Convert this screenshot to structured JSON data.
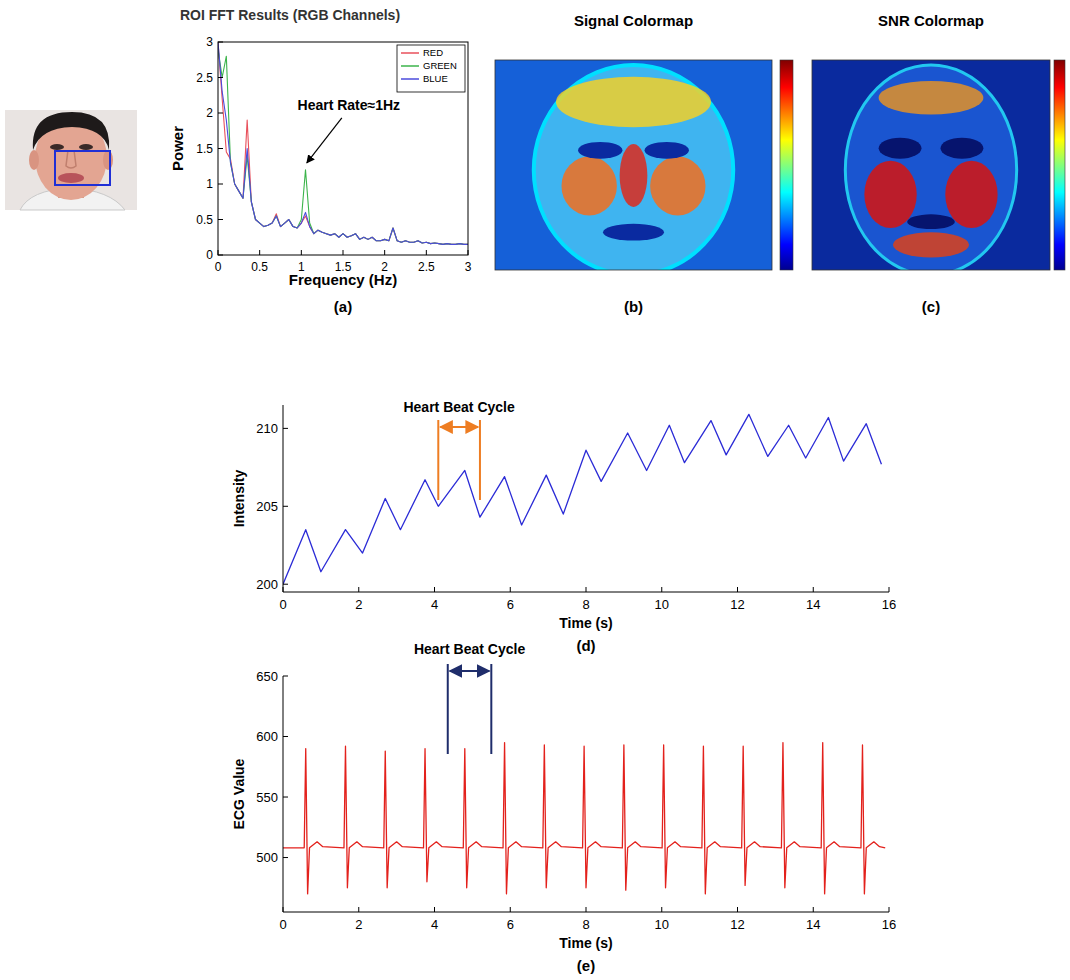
{
  "chart_data": [
    {
      "type": "line",
      "title": "ROI FFT Results (RGB Channels)",
      "label": "(a)",
      "x_label": "Frequency (Hz)",
      "y_label": "Power",
      "x": [
        0,
        0.05,
        0.1,
        0.15,
        0.2,
        0.25,
        0.3,
        0.35,
        0.4,
        0.45,
        0.5,
        0.55,
        0.6,
        0.65,
        0.7,
        0.75,
        0.8,
        0.85,
        0.9,
        0.95,
        1.0,
        1.05,
        1.1,
        1.15,
        1.2,
        1.25,
        1.3,
        1.35,
        1.4,
        1.45,
        1.5,
        1.55,
        1.6,
        1.65,
        1.7,
        1.75,
        1.8,
        1.85,
        1.9,
        1.95,
        2.0,
        2.05,
        2.1,
        2.15,
        2.2,
        2.25,
        2.3,
        2.35,
        2.4,
        2.45,
        2.5,
        2.55,
        2.6,
        2.65,
        2.7,
        2.75,
        2.8,
        2.85,
        2.9,
        2.95,
        3.0
      ],
      "series": [
        {
          "name": "RED",
          "color": "#e8505b",
          "values": [
            3.0,
            2.2,
            1.45,
            1.35,
            1.0,
            0.9,
            0.8,
            1.9,
            0.75,
            0.5,
            0.45,
            0.4,
            0.42,
            0.45,
            0.58,
            0.4,
            0.45,
            0.5,
            0.4,
            0.38,
            0.45,
            0.55,
            0.4,
            0.3,
            0.35,
            0.32,
            0.3,
            0.28,
            0.3,
            0.25,
            0.3,
            0.25,
            0.27,
            0.3,
            0.22,
            0.25,
            0.22,
            0.25,
            0.2,
            0.2,
            0.22,
            0.2,
            0.38,
            0.2,
            0.18,
            0.2,
            0.18,
            0.18,
            0.2,
            0.17,
            0.18,
            0.16,
            0.17,
            0.16,
            0.15,
            0.16,
            0.15,
            0.15,
            0.16,
            0.15,
            0.15
          ]
        },
        {
          "name": "GREEN",
          "color": "#3cb44b",
          "values": [
            2.9,
            2.5,
            2.8,
            1.3,
            1.0,
            0.9,
            0.8,
            1.4,
            0.75,
            0.5,
            0.45,
            0.4,
            0.42,
            0.45,
            0.55,
            0.4,
            0.45,
            0.5,
            0.4,
            0.38,
            0.5,
            1.2,
            0.45,
            0.3,
            0.35,
            0.32,
            0.3,
            0.28,
            0.3,
            0.25,
            0.3,
            0.25,
            0.27,
            0.3,
            0.22,
            0.25,
            0.22,
            0.25,
            0.2,
            0.2,
            0.22,
            0.2,
            0.38,
            0.2,
            0.18,
            0.2,
            0.18,
            0.18,
            0.2,
            0.17,
            0.18,
            0.16,
            0.17,
            0.16,
            0.15,
            0.16,
            0.15,
            0.15,
            0.16,
            0.15,
            0.15
          ]
        },
        {
          "name": "BLUE",
          "color": "#4b4bdc",
          "values": [
            3.0,
            2.3,
            1.9,
            1.3,
            1.0,
            0.9,
            0.8,
            1.5,
            0.75,
            0.5,
            0.45,
            0.4,
            0.42,
            0.45,
            0.55,
            0.4,
            0.45,
            0.5,
            0.4,
            0.38,
            0.45,
            0.6,
            0.4,
            0.3,
            0.35,
            0.32,
            0.3,
            0.28,
            0.3,
            0.25,
            0.3,
            0.25,
            0.27,
            0.3,
            0.22,
            0.25,
            0.22,
            0.25,
            0.2,
            0.2,
            0.22,
            0.2,
            0.38,
            0.2,
            0.18,
            0.2,
            0.18,
            0.18,
            0.2,
            0.17,
            0.18,
            0.16,
            0.17,
            0.16,
            0.15,
            0.16,
            0.15,
            0.15,
            0.16,
            0.15,
            0.15
          ]
        }
      ],
      "xlim": [
        0,
        3
      ],
      "ylim": [
        0,
        3
      ],
      "xticks": [
        0,
        0.5,
        1,
        1.5,
        2,
        2.5,
        3
      ],
      "yticks": [
        0,
        0.5,
        1,
        1.5,
        2,
        2.5,
        3
      ],
      "grid": false,
      "legend": "upper right",
      "annotations": [
        {
          "text": "Heart Rate≈1Hz",
          "x": 1.03,
          "y": 1.2,
          "color": "#000000"
        }
      ]
    },
    {
      "type": "heatmap_image",
      "title": "Signal Colormap",
      "label": "(b)"
    },
    {
      "type": "heatmap_image",
      "title": "SNR Colormap",
      "label": "(c)"
    },
    {
      "type": "line",
      "label": "(d)",
      "x_label": "Time (s)",
      "y_label": "Intensity",
      "x": [
        0,
        0.6,
        1.0,
        1.65,
        2.1,
        2.7,
        3.1,
        3.75,
        4.1,
        4.8,
        5.2,
        5.85,
        6.3,
        6.95,
        7.4,
        8.0,
        8.4,
        9.1,
        9.6,
        10.2,
        10.6,
        11.3,
        11.7,
        12.3,
        12.8,
        13.35,
        13.8,
        14.4,
        14.8,
        15.4,
        15.8
      ],
      "series": [
        {
          "color": "#2b2bd6",
          "values": [
            200,
            203.5,
            200.8,
            203.5,
            202,
            205.5,
            203.5,
            206.7,
            205,
            207.3,
            204.3,
            206.9,
            203.8,
            207,
            204.5,
            208.6,
            206.6,
            209.7,
            207.3,
            210.2,
            207.8,
            210.5,
            208.3,
            210.9,
            208.2,
            210.2,
            208.1,
            210.7,
            207.9,
            210.3,
            207.7
          ]
        }
      ],
      "xlim": [
        0,
        16
      ],
      "ylim": [
        199.5,
        211.5
      ],
      "xticks": [
        0,
        2,
        4,
        6,
        8,
        10,
        12,
        14,
        16
      ],
      "yticks": [
        200,
        205,
        210
      ],
      "grid": false,
      "annotations": [
        {
          "text": "Heart Beat Cycle",
          "x": [
            4.1,
            5.2
          ],
          "color": "#ee7d22"
        }
      ]
    },
    {
      "type": "line",
      "label": "(e)",
      "x_label": "Time (s)",
      "y_label": "ECG Value",
      "x": [
        0,
        0.56,
        0.6,
        0.65,
        0.7,
        0.9,
        1.05,
        1.61,
        1.65,
        1.7,
        1.75,
        1.95,
        2.1,
        2.66,
        2.7,
        2.75,
        2.8,
        3.0,
        3.15,
        3.71,
        3.75,
        3.8,
        3.85,
        4.05,
        4.2,
        4.76,
        4.8,
        4.85,
        4.9,
        5.1,
        5.25,
        5.81,
        5.85,
        5.9,
        5.95,
        6.15,
        6.3,
        6.86,
        6.9,
        6.95,
        7.0,
        7.2,
        7.35,
        7.91,
        7.95,
        8.0,
        8.05,
        8.25,
        8.4,
        8.96,
        9.0,
        9.05,
        9.1,
        9.3,
        9.45,
        10.01,
        10.05,
        10.1,
        10.15,
        10.35,
        10.5,
        11.06,
        11.1,
        11.15,
        11.2,
        11.4,
        11.55,
        12.11,
        12.15,
        12.2,
        12.25,
        12.45,
        12.6,
        13.16,
        13.2,
        13.25,
        13.3,
        13.5,
        13.65,
        14.21,
        14.25,
        14.3,
        14.35,
        14.55,
        14.7,
        15.26,
        15.3,
        15.35,
        15.4,
        15.6,
        15.75,
        15.9
      ],
      "series": [
        {
          "color": "#e3211c",
          "values": [
            508,
            508,
            590,
            470,
            508,
            513,
            509,
            508,
            592,
            475,
            508,
            513,
            509,
            508,
            588,
            475,
            508,
            513,
            509,
            508,
            590,
            480,
            508,
            513,
            509,
            508,
            590,
            475,
            508,
            513,
            509,
            508,
            595,
            470,
            508,
            513,
            509,
            508,
            593,
            475,
            508,
            513,
            509,
            508,
            592,
            475,
            508,
            513,
            509,
            508,
            593,
            473,
            508,
            513,
            509,
            508,
            593,
            475,
            508,
            513,
            509,
            508,
            592,
            470,
            508,
            513,
            509,
            508,
            592,
            477,
            508,
            513,
            509,
            508,
            595,
            475,
            508,
            513,
            509,
            508,
            595,
            470,
            508,
            513,
            509,
            508,
            593,
            470,
            508,
            513,
            509,
            508
          ]
        }
      ],
      "xlim": [
        0,
        16
      ],
      "ylim": [
        455,
        650
      ],
      "xticks": [
        0,
        2,
        4,
        6,
        8,
        10,
        12,
        14,
        16
      ],
      "yticks": [
        500,
        550,
        600,
        650
      ],
      "grid": false,
      "annotations": [
        {
          "text": "Heart Beat Cycle",
          "x": [
            4.35,
            5.5
          ],
          "color": "#1f2d6b"
        }
      ]
    }
  ]
}
